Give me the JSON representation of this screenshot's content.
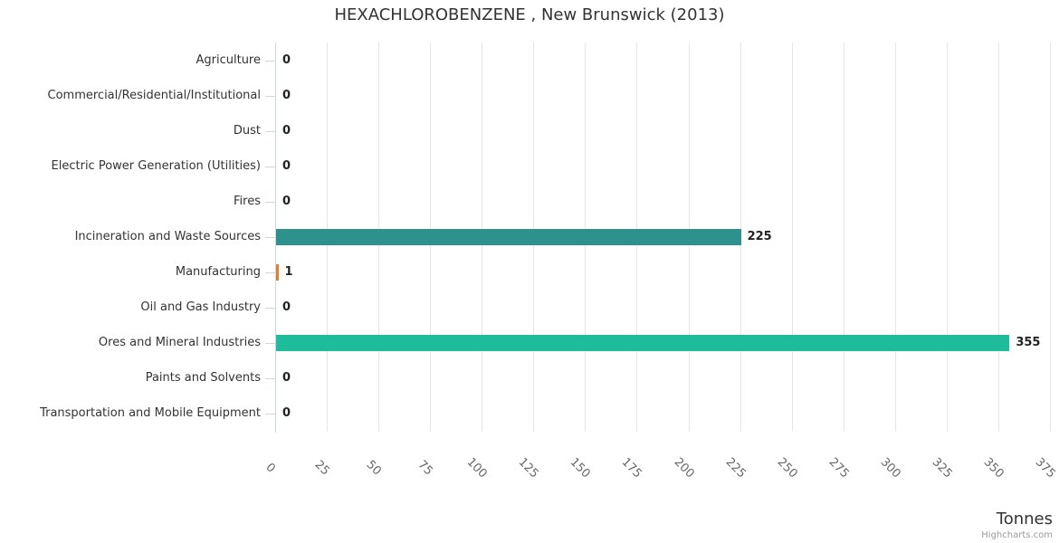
{
  "title": "HEXACHLOROBENZENE , New Brunswick (2013)",
  "credit": "Highcharts.com",
  "colors": {
    "background": "#ffffff",
    "title_text": "#333333",
    "category_label": "#333333",
    "tick_label": "#666666",
    "data_label": "#222222",
    "axis_line": "#ccd6eb",
    "grid_line": "#e6e6e6",
    "bar_teal": "#2e918e",
    "bar_orange": "#e27f28",
    "bar_green": "#1fbc9c"
  },
  "chart_data": {
    "type": "bar",
    "orientation": "horizontal",
    "title": "HEXACHLOROBENZENE , New Brunswick (2013)",
    "categories": [
      "Agriculture",
      "Commercial/Residential/Institutional",
      "Dust",
      "Electric Power Generation (Utilities)",
      "Fires",
      "Incineration and Waste Sources",
      "Manufacturing",
      "Oil and Gas Industry",
      "Ores and Mineral Industries",
      "Paints and Solvents",
      "Transportation and Mobile Equipment"
    ],
    "values": [
      0,
      0,
      0,
      0,
      0,
      225,
      1,
      0,
      355,
      0,
      0
    ],
    "data_labels": [
      "0",
      "0",
      "0",
      "0",
      "0",
      "225",
      "1",
      "0",
      "355",
      "0",
      "0"
    ],
    "point_colors": [
      null,
      null,
      null,
      null,
      null,
      "#2e918e",
      "#e27f28",
      null,
      "#1fbc9c",
      null,
      null
    ],
    "xlabel": "Tonnes",
    "xlim": [
      0,
      375
    ],
    "xticks": [
      0,
      25,
      50,
      75,
      100,
      125,
      150,
      175,
      200,
      225,
      250,
      275,
      300,
      325,
      350,
      375
    ],
    "grid": true,
    "legend": false
  }
}
